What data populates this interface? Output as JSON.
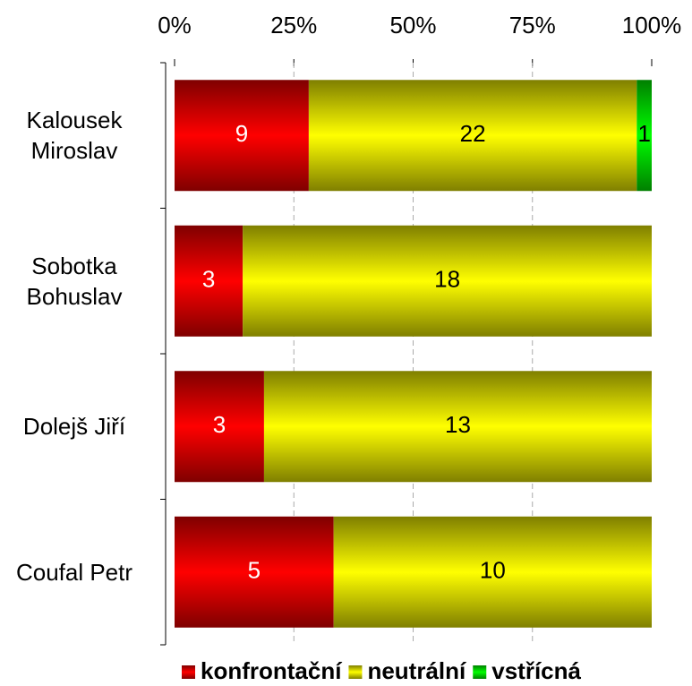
{
  "chart_data": {
    "type": "bar",
    "orientation": "horizontal",
    "stack": "percent",
    "categories": [
      "Kalousek\nMiroslav",
      "Sobotka\nBohuslav",
      "Dolejš Jiří",
      "Coufal Petr"
    ],
    "series": [
      {
        "name": "konfrontační",
        "color": "#ff0000",
        "label_color": "#ffffff",
        "values": [
          9,
          3,
          3,
          5
        ]
      },
      {
        "name": "neutrální",
        "color": "#ffff00",
        "label_color": "#000000",
        "values": [
          22,
          18,
          13,
          10
        ]
      },
      {
        "name": "vstřícná",
        "color": "#00ff00",
        "label_color": "#000000",
        "values": [
          1,
          null,
          null,
          null
        ]
      }
    ],
    "xlim": [
      0,
      100
    ],
    "xticks": [
      {
        "value": 0,
        "label": "0%"
      },
      {
        "value": 25,
        "label": "25%"
      },
      {
        "value": 50,
        "label": "50%"
      },
      {
        "value": 75,
        "label": "75%"
      },
      {
        "value": 100,
        "label": "100%"
      }
    ],
    "grid": true,
    "legend": "bottom"
  }
}
